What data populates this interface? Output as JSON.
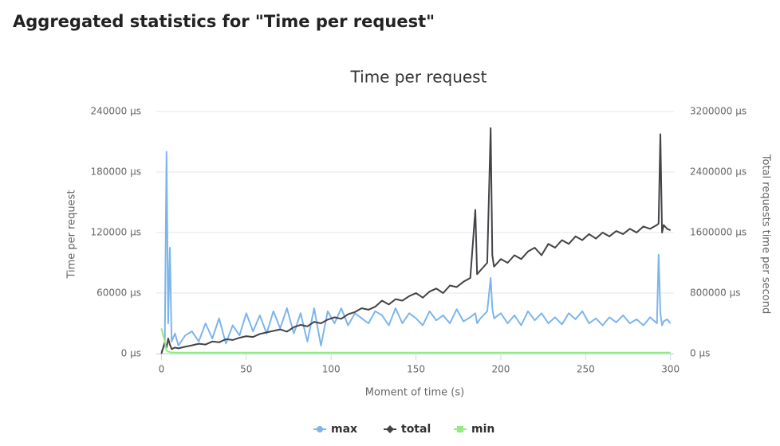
{
  "heading": "Aggregated statistics for \"Time per request\"",
  "chart_data": {
    "type": "line",
    "title": "Time per request",
    "x_label": "Moment of time (s)",
    "y_label": "Time per request",
    "y2_label": "Total requests time per second",
    "x": [
      0,
      2,
      3,
      4,
      5,
      6,
      8,
      10,
      14,
      18,
      22,
      26,
      30,
      34,
      38,
      42,
      46,
      50,
      54,
      58,
      62,
      66,
      70,
      74,
      78,
      82,
      86,
      90,
      94,
      98,
      102,
      106,
      110,
      114,
      118,
      122,
      126,
      130,
      134,
      138,
      142,
      146,
      150,
      154,
      158,
      162,
      166,
      170,
      174,
      178,
      182,
      185,
      186,
      188,
      192,
      194,
      195,
      196,
      200,
      204,
      208,
      212,
      216,
      220,
      224,
      228,
      232,
      236,
      240,
      244,
      248,
      252,
      256,
      260,
      264,
      268,
      272,
      276,
      280,
      284,
      288,
      292,
      293,
      294,
      295,
      296,
      298,
      300
    ],
    "series": [
      {
        "name": "max",
        "color": "#7cb5ec",
        "marker": "circle",
        "values": [
          2000,
          8000,
          200000,
          30000,
          105000,
          12000,
          20000,
          8000,
          18000,
          22000,
          12000,
          30000,
          15000,
          35000,
          10000,
          28000,
          18000,
          40000,
          22000,
          38000,
          20000,
          42000,
          25000,
          45000,
          20000,
          40000,
          12000,
          45000,
          8000,
          42000,
          30000,
          45000,
          28000,
          40000,
          35000,
          30000,
          42000,
          38000,
          28000,
          45000,
          30000,
          40000,
          35000,
          28000,
          42000,
          33000,
          38000,
          30000,
          44000,
          32000,
          36000,
          40000,
          30000,
          35000,
          42000,
          75000,
          45000,
          35000,
          40000,
          30000,
          38000,
          28000,
          42000,
          33000,
          40000,
          30000,
          36000,
          29000,
          40000,
          34000,
          42000,
          30000,
          35000,
          28000,
          36000,
          31000,
          38000,
          30000,
          34000,
          28000,
          36000,
          30000,
          98000,
          40000,
          28000,
          32000,
          34000,
          30000
        ]
      },
      {
        "name": "total",
        "color": "#434348",
        "marker": "diamond",
        "axis": "y2",
        "values": [
          0,
          150000,
          80000,
          200000,
          120000,
          60000,
          80000,
          70000,
          90000,
          110000,
          130000,
          120000,
          160000,
          150000,
          190000,
          180000,
          210000,
          230000,
          220000,
          260000,
          280000,
          300000,
          320000,
          290000,
          350000,
          380000,
          360000,
          420000,
          400000,
          450000,
          480000,
          460000,
          520000,
          550000,
          600000,
          580000,
          620000,
          700000,
          650000,
          720000,
          700000,
          760000,
          800000,
          740000,
          820000,
          860000,
          800000,
          900000,
          880000,
          950000,
          1000000,
          1900000,
          1050000,
          1100000,
          1200000,
          2980000,
          1300000,
          1150000,
          1250000,
          1200000,
          1300000,
          1250000,
          1350000,
          1400000,
          1300000,
          1450000,
          1400000,
          1500000,
          1450000,
          1550000,
          1500000,
          1580000,
          1520000,
          1600000,
          1550000,
          1620000,
          1580000,
          1650000,
          1600000,
          1680000,
          1650000,
          1700000,
          1720000,
          2900000,
          1600000,
          1700000,
          1650000,
          1630000
        ]
      },
      {
        "name": "min",
        "color": "#90ed7d",
        "marker": "square",
        "values": [
          25000,
          12000,
          3000,
          2000,
          1500,
          1200,
          1000,
          1000,
          1000,
          1000,
          1000,
          1000,
          1000,
          1000,
          1000,
          1000,
          1000,
          1000,
          1000,
          1000,
          1000,
          1000,
          1000,
          1000,
          1000,
          1000,
          1000,
          1000,
          1000,
          1000,
          1000,
          1000,
          1000,
          1000,
          1000,
          1000,
          1000,
          1000,
          1000,
          1000,
          1000,
          1000,
          1000,
          1000,
          1000,
          1000,
          1000,
          1000,
          1000,
          1000,
          1000,
          1000,
          1000,
          1000,
          1000,
          1000,
          1000,
          1000,
          1000,
          1000,
          1000,
          1000,
          1000,
          1000,
          1000,
          1000,
          1000,
          1000,
          1000,
          1000,
          1000,
          1000,
          1000,
          1000,
          1000,
          1000,
          1000,
          1000,
          1000,
          1000,
          1000,
          1000,
          1000,
          1000,
          1000,
          1000,
          1000,
          1000
        ]
      }
    ],
    "xlim": [
      -3,
      302
    ],
    "xticks": [
      0,
      50,
      100,
      150,
      200,
      250,
      300
    ],
    "ylim": [
      0,
      240000
    ],
    "yticks": [
      {
        "value": 0,
        "label": "0 µs"
      },
      {
        "value": 60000,
        "label": "60000 µs"
      },
      {
        "value": 120000,
        "label": "120000 µs"
      },
      {
        "value": 180000,
        "label": "180000 µs"
      },
      {
        "value": 240000,
        "label": "240000 µs"
      }
    ],
    "y2lim": [
      0,
      3200000
    ],
    "y2ticks": [
      {
        "value": 0,
        "label": "0 µs"
      },
      {
        "value": 800000,
        "label": "800000 µs"
      },
      {
        "value": 1600000,
        "label": "1600000 µs"
      },
      {
        "value": 2400000,
        "label": "2400000 µs"
      },
      {
        "value": 3200000,
        "label": "3200000 µs"
      }
    ],
    "grid": true,
    "legend": "bottom"
  }
}
